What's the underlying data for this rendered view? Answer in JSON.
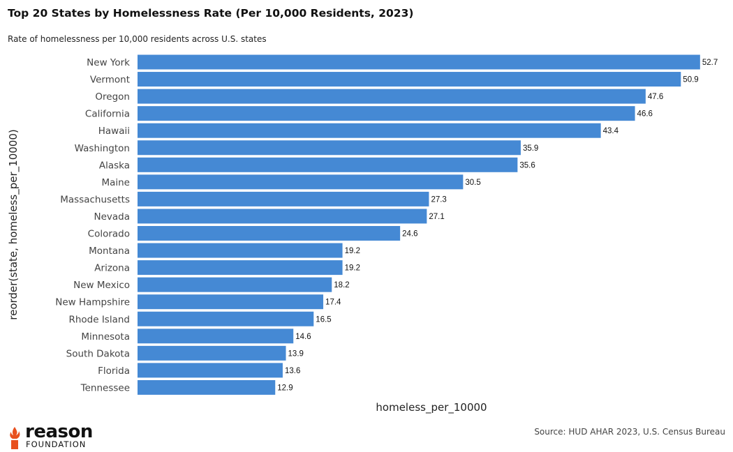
{
  "chart_data": {
    "type": "bar",
    "orientation": "horizontal",
    "title": "Top 20 States by Homelessness Rate (Per 10,000 Residents, 2023)",
    "subtitle": "Rate of homelessness per 10,000 residents across U.S. states",
    "xlabel": "homeless_per_10000",
    "ylabel": "reorder(state, homeless_per_10000)",
    "caption": "Source: HUD AHAR 2023, U.S. Census Bureau",
    "categories": [
      "New York",
      "Vermont",
      "Oregon",
      "California",
      "Hawaii",
      "Washington",
      "Alaska",
      "Maine",
      "Massachusetts",
      "Nevada",
      "Colorado",
      "Montana",
      "Arizona",
      "New Mexico",
      "New Hampshire",
      "Rhode Island",
      "Minnesota",
      "South Dakota",
      "Florida",
      "Tennessee"
    ],
    "values": [
      52.7,
      50.9,
      47.6,
      46.6,
      43.4,
      35.9,
      35.6,
      30.5,
      27.3,
      27.1,
      24.6,
      19.2,
      19.2,
      18.2,
      17.4,
      16.5,
      14.6,
      13.9,
      13.6,
      12.9
    ],
    "data_labels": [
      "52.7",
      "50.9",
      "47.6",
      "46.6",
      "43.4",
      "35.9",
      "35.6",
      "30.5",
      "27.3",
      "27.1",
      "24.6",
      "19.2",
      "19.2",
      "18.2",
      "17.4",
      "16.5",
      "14.6",
      "13.9",
      "13.6",
      "12.9"
    ],
    "xlim": [
      0,
      55
    ],
    "grid": false,
    "bar_color": "#4589d4"
  },
  "branding": {
    "logo_word": "reason",
    "logo_sub": "FOUNDATION",
    "logo_color": "#e8501e"
  }
}
